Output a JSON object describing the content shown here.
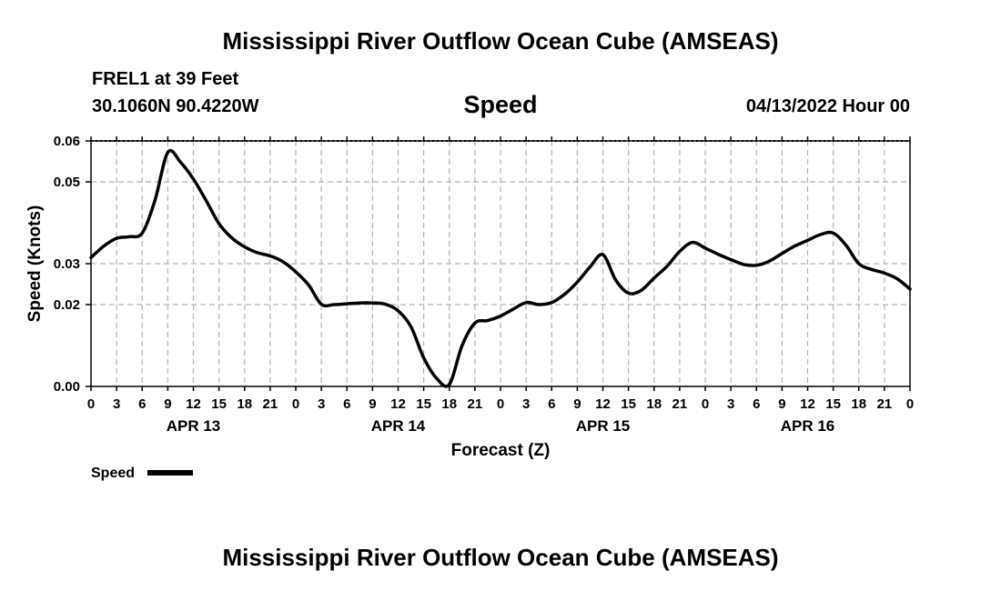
{
  "page": {
    "title": "Mississippi River Outflow Ocean Cube (AMSEAS)",
    "station": "FREL1 at 39 Feet",
    "coords": "30.1060N  90.4220W",
    "variable": "Speed",
    "datetime": "04/13/2022 Hour 00",
    "footer_title": "Mississippi River Outflow Ocean Cube (AMSEAS)"
  },
  "chart_data": {
    "type": "line",
    "title": "Speed",
    "xlabel": "Forecast (Z)",
    "ylabel": "Speed (Knots)",
    "xlim": [
      0,
      96
    ],
    "ylim": [
      0,
      0.06
    ],
    "y_ticks": [
      0,
      0.02,
      0.03,
      0.05,
      0.06
    ],
    "y_tick_labels": [
      "0.00",
      "0.02",
      "0.03",
      "0.05",
      "0.06"
    ],
    "x_tick_hours": [
      0,
      3,
      6,
      9,
      12,
      15,
      18,
      21,
      24,
      27,
      30,
      33,
      36,
      39,
      42,
      45,
      48,
      51,
      54,
      57,
      60,
      63,
      66,
      69,
      72,
      75,
      78,
      81,
      84,
      87,
      90,
      93,
      96
    ],
    "x_tick_labels": [
      "0",
      "3",
      "6",
      "9",
      "12",
      "15",
      "18",
      "21",
      "0",
      "3",
      "6",
      "9",
      "12",
      "15",
      "18",
      "21",
      "0",
      "3",
      "6",
      "9",
      "12",
      "15",
      "18",
      "21",
      "0",
      "3",
      "6",
      "9",
      "12",
      "15",
      "18",
      "21",
      "0"
    ],
    "day_labels": [
      {
        "hour": 12,
        "label": "APR 13"
      },
      {
        "hour": 36,
        "label": "APR 14"
      },
      {
        "hour": 60,
        "label": "APR 15"
      },
      {
        "hour": 84,
        "label": "APR 16"
      }
    ],
    "grid": true,
    "legend": {
      "position": "bottom-left",
      "entries": [
        "Speed"
      ]
    },
    "series": [
      {
        "name": "Speed",
        "color": "#000000",
        "x": [
          0,
          1.5,
          3,
          4.5,
          6,
          7.5,
          9,
          10.5,
          12,
          13.5,
          15,
          16.5,
          18,
          19.5,
          21,
          22.5,
          24,
          25.5,
          27,
          28.5,
          30,
          31.5,
          33,
          34.5,
          36,
          37.5,
          39,
          40.5,
          42,
          43.5,
          45,
          46.5,
          48,
          49.5,
          51,
          52.5,
          54,
          55.5,
          57,
          58.5,
          60,
          61.5,
          63,
          64.5,
          66,
          67.5,
          69,
          70.5,
          72,
          73.5,
          75,
          76.5,
          78,
          79.5,
          81,
          82.5,
          84,
          85.5,
          87,
          88.5,
          90,
          91.5,
          93,
          94.5,
          96
        ],
        "y": [
          0.0315,
          0.0343,
          0.0362,
          0.0366,
          0.0375,
          0.0455,
          0.0572,
          0.0548,
          0.0507,
          0.0454,
          0.0398,
          0.0363,
          0.0341,
          0.0327,
          0.0319,
          0.0305,
          0.028,
          0.0248,
          0.0201,
          0.02,
          0.0202,
          0.0204,
          0.0204,
          0.0201,
          0.0185,
          0.0146,
          0.007,
          0.002,
          0.0005,
          0.01,
          0.0155,
          0.0161,
          0.0172,
          0.0189,
          0.0205,
          0.02,
          0.0205,
          0.0225,
          0.0255,
          0.0292,
          0.0322,
          0.026,
          0.0228,
          0.0235,
          0.0265,
          0.0293,
          0.033,
          0.0352,
          0.0338,
          0.0323,
          0.031,
          0.0298,
          0.0296,
          0.0306,
          0.0325,
          0.0343,
          0.0357,
          0.0371,
          0.0375,
          0.0345,
          0.03,
          0.0286,
          0.0277,
          0.0263,
          0.0238
        ]
      }
    ]
  }
}
